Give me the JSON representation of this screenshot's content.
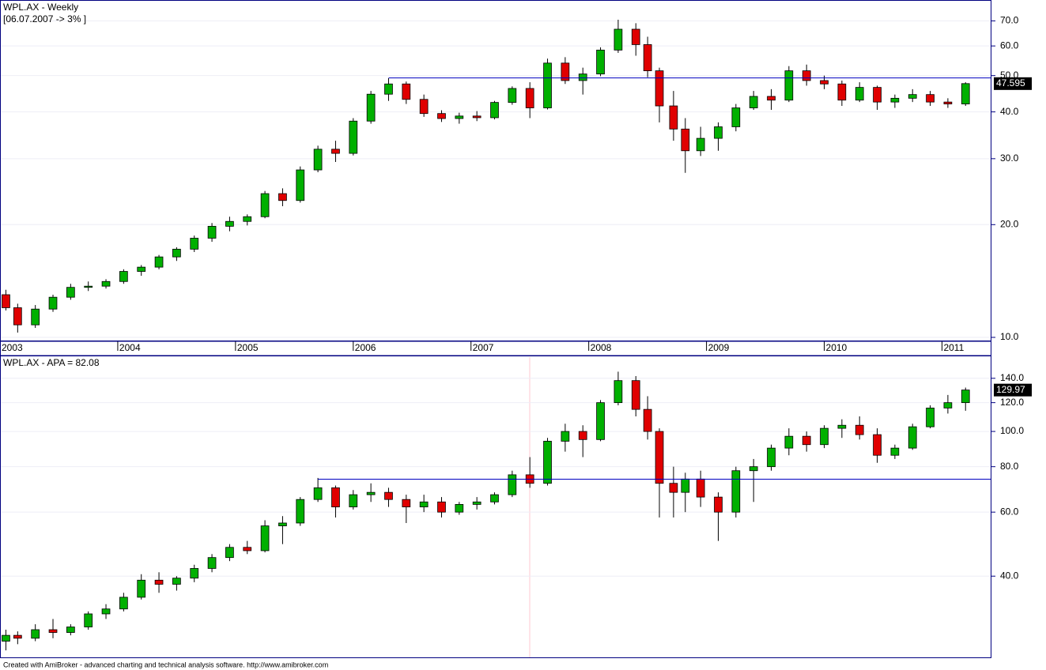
{
  "chart_data": [
    {
      "type": "candlestick",
      "title": "WPL.AX - Weekly",
      "subtitle": "[06.07.2007 -> 3% ]",
      "log_scale": true,
      "up_color": "#00b000",
      "down_color": "#e00000",
      "line_color": "#0000c0",
      "xlim": [
        2003.0,
        2011.42
      ],
      "xticks": [
        2003,
        2004,
        2005,
        2006,
        2007,
        2008,
        2009,
        2010,
        2011
      ],
      "ylim": [
        9.76,
        79.2
      ],
      "yticks": [
        {
          "value": 10,
          "label": "10.0"
        },
        {
          "value": 20,
          "label": "20.0"
        },
        {
          "value": 30,
          "label": "30.0"
        },
        {
          "value": 40,
          "label": "40.0"
        },
        {
          "value": 50,
          "label": "50.0"
        },
        {
          "value": 60,
          "label": "60.0"
        },
        {
          "value": 70,
          "label": "70.0"
        }
      ],
      "hline": {
        "y": 49.3,
        "x_start": 2006.3
      },
      "last_value": 47.595,
      "x": [
        2003.05,
        2003.15,
        2003.3,
        2003.45,
        2003.6,
        2003.75,
        2003.9,
        2004.05,
        2004.2,
        2004.35,
        2004.5,
        2004.65,
        2004.8,
        2004.95,
        2005.1,
        2005.25,
        2005.4,
        2005.55,
        2005.7,
        2005.85,
        2006.0,
        2006.15,
        2006.3,
        2006.45,
        2006.6,
        2006.75,
        2006.9,
        2007.05,
        2007.2,
        2007.35,
        2007.5,
        2007.65,
        2007.8,
        2007.95,
        2008.1,
        2008.25,
        2008.4,
        2008.5,
        2008.6,
        2008.72,
        2008.82,
        2008.95,
        2009.1,
        2009.25,
        2009.4,
        2009.55,
        2009.7,
        2009.85,
        2010.0,
        2010.15,
        2010.3,
        2010.45,
        2010.6,
        2010.75,
        2010.9,
        2011.05,
        2011.2
      ],
      "open": [
        13.0,
        12.0,
        10.8,
        11.9,
        12.8,
        13.6,
        13.7,
        14.1,
        15.0,
        15.4,
        16.4,
        17.2,
        18.4,
        19.8,
        20.4,
        21.0,
        24.2,
        23.2,
        28.0,
        31.8,
        31.0,
        37.8,
        44.6,
        47.5,
        43.2,
        39.6,
        38.4,
        39.0,
        38.6,
        42.4,
        46.2,
        41.0,
        54.0,
        48.5,
        50.5,
        58.5,
        66.5,
        60.5,
        51.5,
        41.5,
        36.0,
        31.5,
        34.0,
        36.5,
        41.0,
        44.0,
        43.0,
        51.5,
        48.5,
        47.5,
        43.0,
        46.5,
        42.5,
        43.5,
        44.5,
        42.5,
        42.0
      ],
      "high": [
        13.4,
        12.3,
        12.2,
        13.0,
        13.9,
        14.1,
        14.3,
        15.2,
        15.6,
        16.6,
        17.4,
        18.7,
        20.2,
        21.0,
        21.3,
        24.6,
        25.0,
        28.6,
        32.5,
        33.5,
        38.5,
        45.5,
        49.2,
        48.2,
        44.5,
        40.4,
        39.8,
        40.2,
        42.8,
        46.8,
        48.0,
        55.5,
        56.0,
        52.5,
        59.5,
        70.5,
        69.0,
        63.5,
        52.5,
        45.5,
        38.5,
        36.5,
        37.5,
        42.0,
        45.5,
        46.0,
        53.0,
        53.5,
        50.0,
        48.5,
        48.0,
        47.0,
        44.5,
        46.0,
        45.5,
        43.5,
        48.0
      ],
      "low": [
        11.8,
        10.3,
        10.6,
        11.7,
        12.6,
        13.3,
        13.5,
        13.9,
        14.6,
        15.2,
        16.0,
        16.9,
        18.0,
        19.2,
        19.9,
        20.8,
        22.4,
        22.9,
        27.6,
        29.4,
        30.6,
        37.2,
        42.8,
        42.0,
        38.8,
        37.6,
        37.2,
        37.8,
        38.2,
        41.8,
        38.5,
        40.6,
        47.5,
        44.5,
        49.8,
        57.5,
        56.5,
        49.5,
        37.5,
        33.5,
        27.5,
        30.5,
        31.5,
        35.5,
        40.5,
        40.5,
        42.5,
        47.0,
        46.0,
        41.5,
        42.5,
        40.5,
        41.0,
        42.5,
        41.5,
        41.0,
        41.5
      ],
      "close": [
        12.0,
        10.8,
        11.9,
        12.8,
        13.6,
        13.7,
        14.1,
        15.0,
        15.4,
        16.4,
        17.2,
        18.4,
        19.8,
        20.4,
        21.0,
        24.2,
        23.2,
        28.0,
        31.8,
        31.0,
        37.8,
        44.6,
        47.5,
        43.2,
        39.6,
        38.4,
        39.0,
        38.6,
        42.4,
        46.2,
        41.0,
        54.0,
        48.5,
        50.5,
        58.5,
        66.5,
        60.5,
        51.5,
        41.5,
        36.0,
        31.5,
        34.0,
        36.5,
        41.0,
        44.0,
        43.0,
        51.5,
        48.5,
        47.5,
        43.0,
        46.5,
        42.5,
        43.5,
        44.5,
        42.5,
        42.0,
        47.6
      ]
    },
    {
      "type": "candlestick",
      "title": "WPL.AX - APA = 82.08",
      "log_scale": true,
      "up_color": "#00b000",
      "down_color": "#e00000",
      "line_color": "#0000c0",
      "xlim": [
        2003.0,
        2011.42
      ],
      "ylim": [
        23.8,
        160.9
      ],
      "yticks": [
        {
          "value": 40,
          "label": "40.0"
        },
        {
          "value": 60,
          "label": "60.0"
        },
        {
          "value": 80,
          "label": "80.0"
        },
        {
          "value": 100,
          "label": "100.0"
        },
        {
          "value": 120,
          "label": "120.0"
        },
        {
          "value": 140,
          "label": "140.0"
        }
      ],
      "hline": {
        "y": 73.9,
        "x_start": 2005.7
      },
      "last_value": 129.97,
      "x": [
        2003.05,
        2003.15,
        2003.3,
        2003.45,
        2003.6,
        2003.75,
        2003.9,
        2004.05,
        2004.2,
        2004.35,
        2004.5,
        2004.65,
        2004.8,
        2004.95,
        2005.1,
        2005.25,
        2005.4,
        2005.55,
        2005.7,
        2005.85,
        2006.0,
        2006.15,
        2006.3,
        2006.45,
        2006.6,
        2006.75,
        2006.9,
        2007.05,
        2007.2,
        2007.35,
        2007.5,
        2007.65,
        2007.8,
        2007.95,
        2008.1,
        2008.25,
        2008.4,
        2008.5,
        2008.6,
        2008.72,
        2008.82,
        2008.95,
        2009.1,
        2009.25,
        2009.4,
        2009.55,
        2009.7,
        2009.85,
        2010.0,
        2010.15,
        2010.3,
        2010.45,
        2010.6,
        2010.75,
        2010.9,
        2011.05,
        2011.2
      ],
      "open": [
        26.5,
        27.5,
        27.0,
        28.5,
        28.0,
        29.0,
        31.5,
        32.5,
        35.0,
        39.0,
        38.0,
        39.5,
        42.0,
        45.0,
        48.0,
        47.0,
        55.0,
        56.0,
        65.0,
        70.0,
        62.0,
        67.0,
        68.0,
        65.0,
        62.0,
        64.0,
        60.0,
        63.0,
        64.0,
        67.0,
        76.0,
        72.0,
        94.0,
        100.0,
        95.0,
        120.0,
        138.0,
        115.0,
        100.0,
        72.0,
        68.0,
        74.0,
        66.0,
        60.0,
        78.0,
        80.0,
        90.0,
        97.0,
        92.0,
        102.0,
        104.0,
        98.0,
        86.0,
        90.0,
        103.0,
        116.0,
        120.0
      ],
      "high": [
        28.5,
        28.2,
        29.5,
        30.5,
        29.5,
        32.0,
        33.5,
        36.0,
        40.5,
        41.0,
        40.0,
        43.0,
        46.0,
        49.0,
        50.0,
        57.0,
        58.5,
        66.0,
        74.5,
        71.0,
        69.0,
        72.0,
        70.0,
        67.0,
        67.0,
        66.0,
        64.0,
        66.0,
        68.0,
        78.0,
        85.0,
        96.0,
        105.0,
        104.0,
        122.0,
        146.0,
        142.0,
        125.0,
        102.0,
        80.0,
        77.0,
        78.0,
        68.0,
        80.0,
        84.0,
        92.0,
        102.0,
        100.0,
        104.0,
        108.0,
        110.0,
        102.0,
        92.0,
        105.0,
        118.0,
        126.0,
        132.0
      ],
      "low": [
        25.0,
        26.0,
        26.5,
        27.0,
        27.5,
        28.5,
        30.5,
        32.0,
        34.5,
        36.0,
        36.5,
        38.5,
        41.0,
        44.0,
        46.0,
        46.5,
        49.0,
        55.0,
        64.0,
        58.0,
        61.0,
        64.0,
        62.0,
        56.0,
        60.0,
        58.0,
        59.0,
        61.0,
        63.0,
        66.0,
        70.0,
        71.0,
        88.0,
        85.0,
        94.0,
        118.0,
        110.0,
        95.0,
        58.0,
        58.0,
        60.0,
        62.0,
        50.0,
        58.0,
        64.0,
        78.0,
        86.0,
        88.0,
        90.0,
        96.0,
        95.0,
        82.0,
        84.0,
        89.0,
        102.0,
        112.0,
        114.0
      ],
      "close": [
        27.5,
        27.0,
        28.5,
        28.0,
        29.0,
        31.5,
        32.5,
        35.0,
        39.0,
        38.0,
        39.5,
        42.0,
        45.0,
        48.0,
        47.0,
        55.0,
        56.0,
        65.0,
        70.0,
        62.0,
        67.0,
        68.0,
        65.0,
        62.0,
        64.0,
        60.0,
        63.0,
        64.0,
        67.0,
        76.0,
        72.0,
        94.0,
        100.0,
        95.0,
        120.0,
        138.0,
        115.0,
        100.0,
        72.0,
        68.0,
        74.0,
        66.0,
        60.0,
        78.0,
        80.0,
        90.0,
        97.0,
        92.0,
        102.0,
        104.0,
        98.0,
        86.0,
        90.0,
        103.0,
        116.0,
        120.0,
        130.0
      ]
    }
  ],
  "footer": "Created with AmiBroker - advanced charting and technical analysis software. http://www.amibroker.com"
}
